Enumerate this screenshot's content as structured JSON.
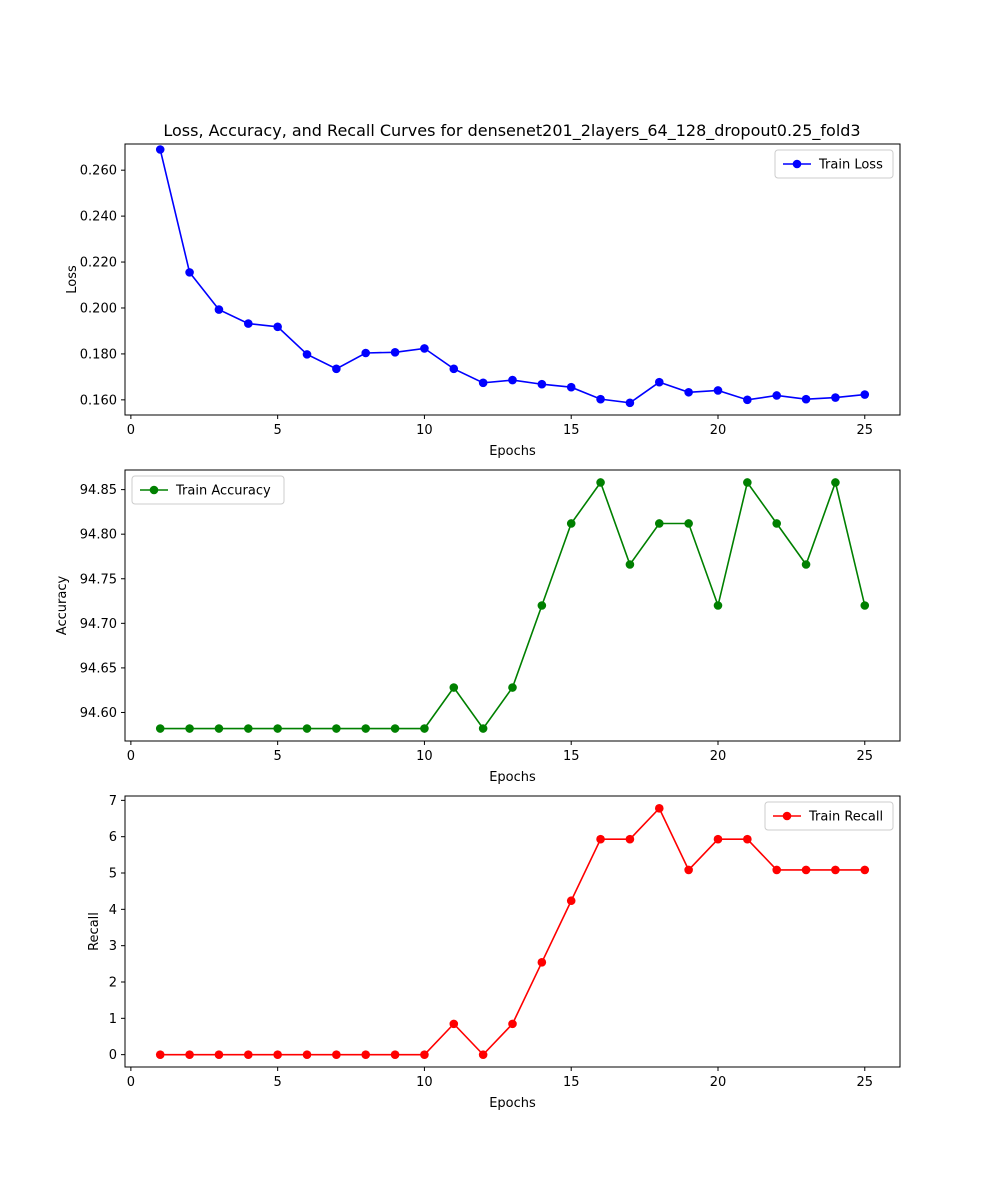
{
  "figure": {
    "title": "Loss, Accuracy, and Recall Curves for densenet201_2layers_64_128_dropout0.25_fold3"
  },
  "chart_data": [
    {
      "type": "line",
      "title": "Loss, Accuracy, and Recall Curves for densenet201_2layers_64_128_dropout0.25_fold3",
      "xlabel": "Epochs",
      "ylabel": "Loss",
      "xlim": [
        -0.2,
        26.2
      ],
      "ylim": [
        0.1534,
        0.2714
      ],
      "xticks": [
        0,
        5,
        10,
        15,
        20,
        25
      ],
      "yticks": [
        0.16,
        0.18,
        0.2,
        0.22,
        0.24,
        0.26
      ],
      "ytick_labels": [
        "0.160",
        "0.180",
        "0.200",
        "0.220",
        "0.240",
        "0.260"
      ],
      "grid": false,
      "legend": "top-right",
      "x": [
        1,
        2,
        3,
        4,
        5,
        6,
        7,
        8,
        9,
        10,
        11,
        12,
        13,
        14,
        15,
        16,
        17,
        18,
        19,
        20,
        21,
        22,
        23,
        24,
        25
      ],
      "series": [
        {
          "name": "Train Loss",
          "color": "#0000ff",
          "values": [
            0.269,
            0.2155,
            0.1993,
            0.1932,
            0.1918,
            0.1798,
            0.1735,
            0.1804,
            0.1807,
            0.1824,
            0.1735,
            0.1674,
            0.1686,
            0.1668,
            0.1655,
            0.1603,
            0.1587,
            0.1677,
            0.1633,
            0.1641,
            0.16,
            0.1619,
            0.1603,
            0.161,
            0.1623
          ]
        }
      ]
    },
    {
      "type": "line",
      "xlabel": "Epochs",
      "ylabel": "Accuracy",
      "xlim": [
        -0.2,
        26.2
      ],
      "ylim": [
        94.568,
        94.872
      ],
      "xticks": [
        0,
        5,
        10,
        15,
        20,
        25
      ],
      "yticks": [
        94.6,
        94.65,
        94.7,
        94.75,
        94.8,
        94.85
      ],
      "ytick_labels": [
        "94.60",
        "94.65",
        "94.70",
        "94.75",
        "94.80",
        "94.85"
      ],
      "grid": false,
      "legend": "top-left",
      "x": [
        1,
        2,
        3,
        4,
        5,
        6,
        7,
        8,
        9,
        10,
        11,
        12,
        13,
        14,
        15,
        16,
        17,
        18,
        19,
        20,
        21,
        22,
        23,
        24,
        25
      ],
      "series": [
        {
          "name": "Train Accuracy",
          "color": "#008000",
          "values": [
            94.582,
            94.582,
            94.582,
            94.582,
            94.582,
            94.582,
            94.582,
            94.582,
            94.582,
            94.582,
            94.628,
            94.582,
            94.628,
            94.72,
            94.812,
            94.858,
            94.766,
            94.812,
            94.812,
            94.72,
            94.858,
            94.812,
            94.766,
            94.858,
            94.72
          ]
        }
      ]
    },
    {
      "type": "line",
      "xlabel": "Epochs",
      "ylabel": "Recall",
      "xlim": [
        -0.2,
        26.2
      ],
      "ylim": [
        -0.34,
        7.12
      ],
      "xticks": [
        0,
        5,
        10,
        15,
        20,
        25
      ],
      "yticks": [
        0,
        1,
        2,
        3,
        4,
        5,
        6,
        7
      ],
      "ytick_labels": [
        "0",
        "1",
        "2",
        "3",
        "4",
        "5",
        "6",
        "7"
      ],
      "grid": false,
      "legend": "top-right",
      "x": [
        1,
        2,
        3,
        4,
        5,
        6,
        7,
        8,
        9,
        10,
        11,
        12,
        13,
        14,
        15,
        16,
        17,
        18,
        19,
        20,
        21,
        22,
        23,
        24,
        25
      ],
      "series": [
        {
          "name": "Train Recall",
          "color": "#ff0000",
          "values": [
            0,
            0,
            0,
            0,
            0,
            0,
            0,
            0,
            0,
            0,
            0.847,
            0,
            0.847,
            2.542,
            4.237,
            5.932,
            5.932,
            6.78,
            5.085,
            5.932,
            5.932,
            5.085,
            5.085,
            5.085,
            5.085
          ]
        }
      ]
    }
  ]
}
